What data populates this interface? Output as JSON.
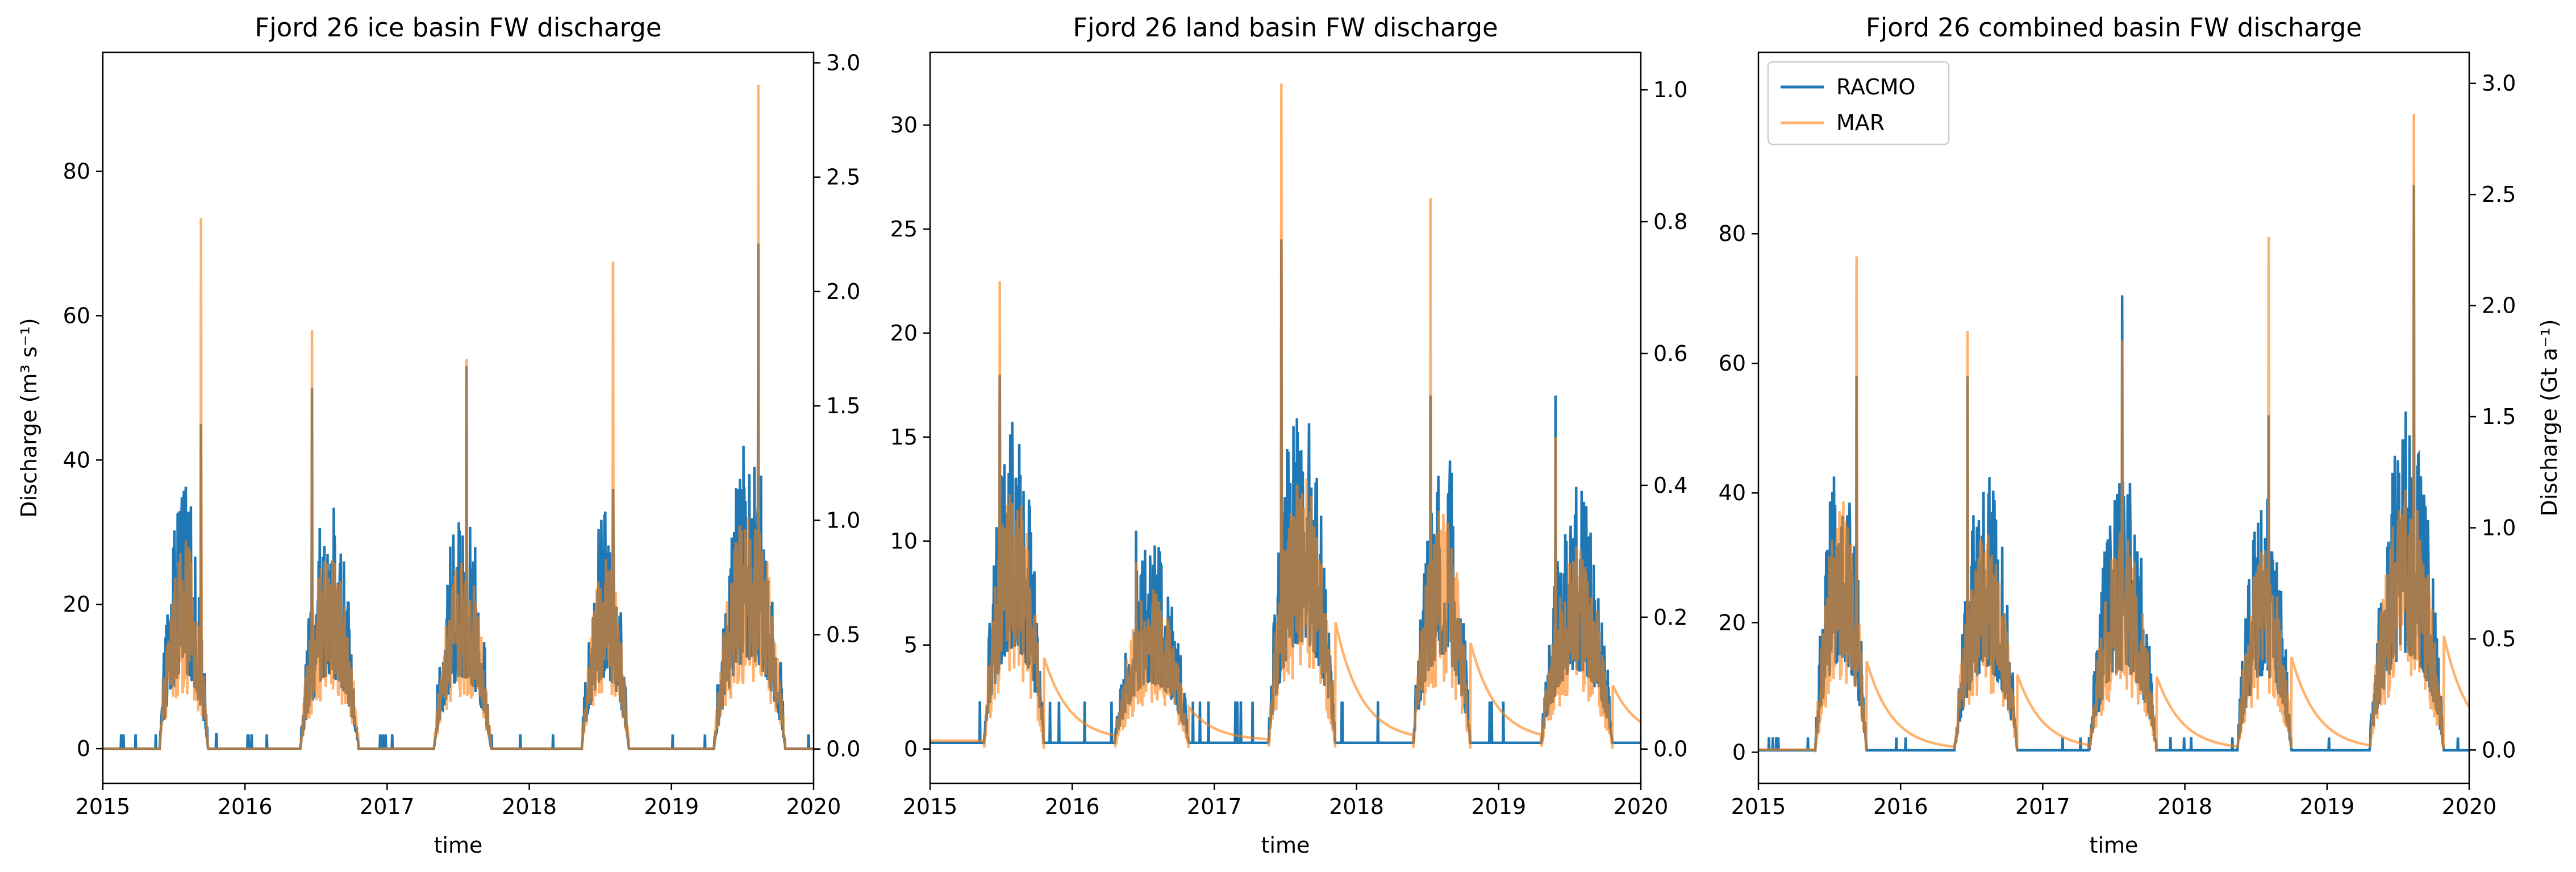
{
  "colors": {
    "racmo": "#1f77b4",
    "mar": "#ff7f0e",
    "mar_alpha": 0.6
  },
  "chart_data": [
    {
      "type": "line",
      "title": "Fjord 26 ice basin FW discharge",
      "xlabel": "time",
      "ylabel": "Discharge (m³ s⁻¹)",
      "ylabel_right": "",
      "xlim": [
        2015,
        2020
      ],
      "ylim": [
        -4.8,
        96.5
      ],
      "y2lim": [
        -0.15,
        3.046
      ],
      "xticks": [
        "2015",
        "2016",
        "2017",
        "2018",
        "2019",
        "2020"
      ],
      "yticks": [
        "0",
        "20",
        "40",
        "60",
        "80"
      ],
      "y2ticks": [
        "0.0",
        "0.5",
        "1.0",
        "1.5",
        "2.0",
        "2.5",
        "3.0"
      ],
      "legend": null,
      "baseline": 0,
      "seasons": [
        {
          "start": 2015.4,
          "end": 2015.74,
          "racmo_peak": 45,
          "mar_peak": 73.5,
          "peak_at": 2015.69,
          "scale": 30
        },
        {
          "start": 2016.39,
          "end": 2016.8,
          "racmo_peak": 50,
          "mar_peak": 58,
          "peak_at": 2016.47,
          "scale": 28
        },
        {
          "start": 2017.33,
          "end": 2017.73,
          "racmo_peak": 53,
          "mar_peak": 54,
          "peak_at": 2017.56,
          "scale": 28
        },
        {
          "start": 2018.37,
          "end": 2018.7,
          "racmo_peak": 36,
          "mar_peak": 67.5,
          "peak_at": 2018.59,
          "scale": 28
        },
        {
          "start": 2019.3,
          "end": 2019.8,
          "racmo_peak": 70,
          "mar_peak": 92,
          "peak_at": 2019.61,
          "scale": 35
        }
      ],
      "series": [
        {
          "name": "RACMO",
          "values": [
            0,
            45,
            50,
            53,
            36,
            70,
            0
          ]
        },
        {
          "name": "MAR",
          "values": [
            0,
            73.5,
            58,
            54,
            67.5,
            92,
            0
          ]
        }
      ]
    },
    {
      "type": "line",
      "title": "Fjord 26 land basin FW discharge",
      "xlabel": "time",
      "ylabel": "",
      "ylabel_right": "",
      "xlim": [
        2015,
        2020
      ],
      "ylim": [
        -1.65,
        33.5
      ],
      "y2lim": [
        -0.052,
        1.057
      ],
      "xticks": [
        "2015",
        "2016",
        "2017",
        "2018",
        "2019",
        "2020"
      ],
      "yticks": [
        "0",
        "5",
        "10",
        "15",
        "20",
        "25",
        "30"
      ],
      "y2ticks": [
        "0.0",
        "0.2",
        "0.4",
        "0.6",
        "0.8",
        "1.0"
      ],
      "legend": null,
      "baseline": 0.3,
      "seasons": [
        {
          "start": 2015.38,
          "end": 2015.8,
          "racmo_peak": 18,
          "mar_peak": 22.5,
          "peak_at": 2015.49,
          "scale": 13
        },
        {
          "start": 2016.3,
          "end": 2016.82,
          "racmo_peak": 10.5,
          "mar_peak": 9,
          "peak_at": 2016.45,
          "scale": 8
        },
        {
          "start": 2017.38,
          "end": 2017.85,
          "racmo_peak": 24.5,
          "mar_peak": 32,
          "peak_at": 2017.47,
          "scale": 14
        },
        {
          "start": 2018.4,
          "end": 2018.8,
          "racmo_peak": 17,
          "mar_peak": 26.5,
          "peak_at": 2018.52,
          "scale": 12
        },
        {
          "start": 2019.3,
          "end": 2019.8,
          "racmo_peak": 17,
          "mar_peak": 15,
          "peak_at": 2019.4,
          "scale": 10
        }
      ],
      "series": [
        {
          "name": "RACMO",
          "values": [
            0.3,
            18,
            10.5,
            24.5,
            17,
            17,
            0.3
          ]
        },
        {
          "name": "MAR",
          "values": [
            1.3,
            22.5,
            9,
            32,
            26.5,
            15,
            1.2
          ]
        }
      ]
    },
    {
      "type": "line",
      "title": "Fjord 26 combined basin FW discharge",
      "xlabel": "time",
      "ylabel": "",
      "ylabel_right": "Discharge (Gt a⁻¹)",
      "xlim": [
        2015,
        2020
      ],
      "ylim": [
        -4.8,
        108
      ],
      "y2lim": [
        -0.15,
        3.14
      ],
      "xticks": [
        "2015",
        "2016",
        "2017",
        "2018",
        "2019",
        "2020"
      ],
      "yticks": [
        "0",
        "20",
        "40",
        "60",
        "80"
      ],
      "y2ticks": [
        "0.0",
        "0.5",
        "1.0",
        "1.5",
        "2.0",
        "2.5",
        "3.0"
      ],
      "legend": {
        "position": "upper-left",
        "entries": [
          "RACMO",
          "MAR"
        ]
      },
      "baseline": 0.3,
      "seasons": [
        {
          "start": 2015.4,
          "end": 2015.76,
          "racmo_peak": 58,
          "mar_peak": 76.5,
          "peak_at": 2015.69,
          "scale": 40
        },
        {
          "start": 2016.38,
          "end": 2016.82,
          "racmo_peak": 58,
          "mar_peak": 65,
          "peak_at": 2016.47,
          "scale": 35
        },
        {
          "start": 2017.33,
          "end": 2017.8,
          "racmo_peak": 70.5,
          "mar_peak": 63.5,
          "peak_at": 2017.56,
          "scale": 35
        },
        {
          "start": 2018.37,
          "end": 2018.75,
          "racmo_peak": 52,
          "mar_peak": 79.5,
          "peak_at": 2018.59,
          "scale": 33
        },
        {
          "start": 2019.3,
          "end": 2019.82,
          "racmo_peak": 87.5,
          "mar_peak": 98.5,
          "peak_at": 2019.61,
          "scale": 42
        }
      ],
      "series": [
        {
          "name": "RACMO",
          "values": [
            0.3,
            58,
            58,
            70.5,
            52,
            87.5,
            0.3
          ]
        },
        {
          "name": "MAR",
          "values": [
            1.3,
            76.5,
            65,
            63.5,
            79.5,
            98.5,
            1.3
          ]
        }
      ]
    }
  ]
}
